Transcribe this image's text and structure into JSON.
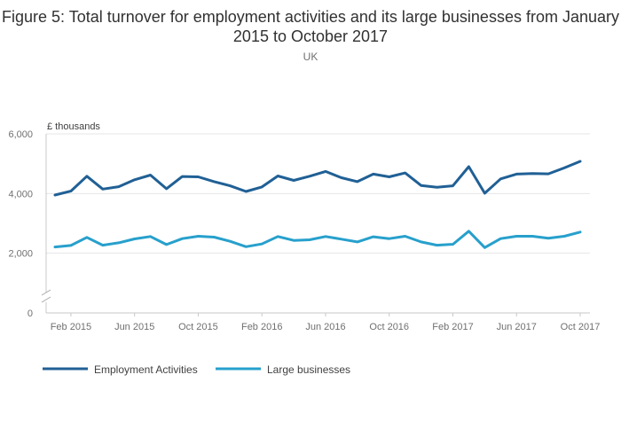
{
  "chart_data": {
    "type": "line",
    "title": "Figure 5: Total turnover for employment activities and its large businesses from January 2015 to October 2017",
    "subtitle": "UK",
    "ylabel": "£ thousands",
    "ylim": [
      0,
      6000
    ],
    "yticks": [
      0,
      2000,
      4000,
      6000
    ],
    "ytick_labels": [
      "0",
      "2,000",
      "4,000",
      "6,000"
    ],
    "axis_break": true,
    "grid": true,
    "legend_position": "bottom-left",
    "x": [
      "Jan 2015",
      "Feb 2015",
      "Mar 2015",
      "Apr 2015",
      "May 2015",
      "Jun 2015",
      "Jul 2015",
      "Aug 2015",
      "Sep 2015",
      "Oct 2015",
      "Nov 2015",
      "Dec 2015",
      "Jan 2016",
      "Feb 2016",
      "Mar 2016",
      "Apr 2016",
      "May 2016",
      "Jun 2016",
      "Jul 2016",
      "Aug 2016",
      "Sep 2016",
      "Oct 2016",
      "Nov 2016",
      "Dec 2016",
      "Jan 2017",
      "Feb 2017",
      "Mar 2017",
      "Apr 2017",
      "May 2017",
      "Jun 2017",
      "Jul 2017",
      "Aug 2017",
      "Sep 2017",
      "Oct 2017"
    ],
    "xtick_labels": [
      "Feb 2015",
      "Jun 2015",
      "Oct 2015",
      "Feb 2016",
      "Jun 2016",
      "Oct 2016",
      "Feb 2017",
      "Jun 2017",
      "Oct 2017"
    ],
    "xtick_indices": [
      1,
      5,
      9,
      13,
      17,
      21,
      25,
      29,
      33
    ],
    "series": [
      {
        "name": "Employment Activities",
        "color": "#206095",
        "values": [
          3950,
          4080,
          4580,
          4150,
          4230,
          4460,
          4620,
          4160,
          4570,
          4560,
          4400,
          4260,
          4070,
          4220,
          4590,
          4440,
          4580,
          4740,
          4530,
          4400,
          4650,
          4560,
          4690,
          4270,
          4210,
          4260,
          4900,
          4010,
          4490,
          4650,
          4670,
          4660,
          4860,
          5080
        ]
      },
      {
        "name": "Large businesses",
        "color": "#27a0cc",
        "values": [
          2210,
          2260,
          2530,
          2270,
          2350,
          2480,
          2560,
          2290,
          2490,
          2570,
          2540,
          2400,
          2220,
          2310,
          2560,
          2430,
          2450,
          2560,
          2470,
          2380,
          2550,
          2490,
          2570,
          2380,
          2270,
          2300,
          2740,
          2190,
          2490,
          2570,
          2570,
          2500,
          2570,
          2710
        ]
      }
    ]
  }
}
